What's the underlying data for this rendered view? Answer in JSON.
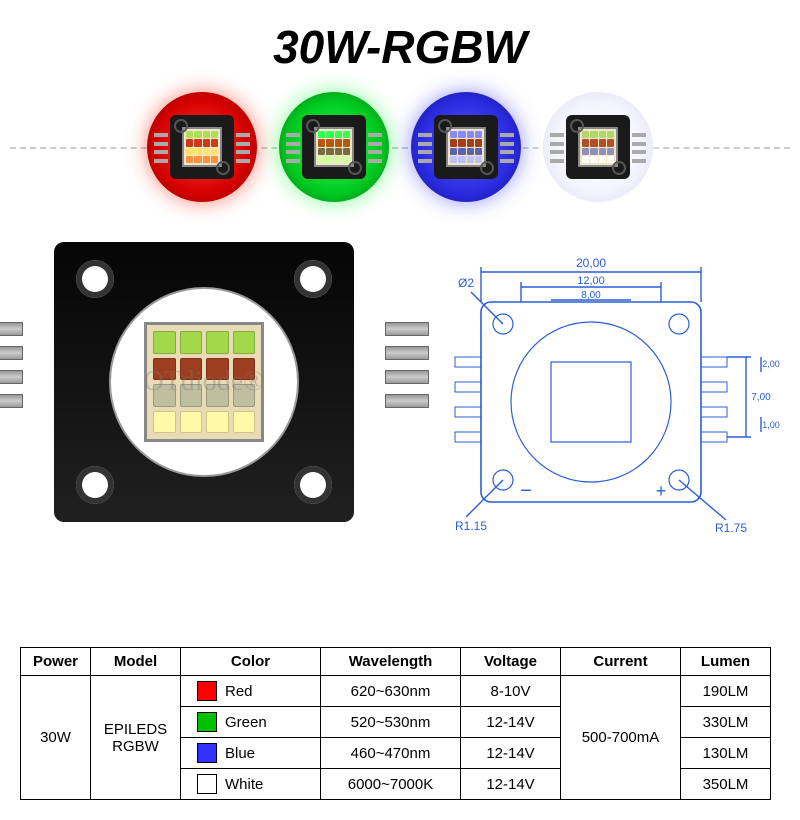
{
  "title": {
    "text": "30W-RGBW",
    "fontsize": 46,
    "color": "#000000"
  },
  "watermark": "OTdiode®",
  "swatches": [
    {
      "name": "red-swatch",
      "bg": "radial-gradient(circle,#ff3b2a 0%,#d40000 60%,#8a0000 100%)",
      "inner_glow": "#ff1a00",
      "grid_rows": [
        [
          "#aee05a",
          "#aee05a",
          "#aee05a",
          "#aee05a"
        ],
        [
          "#cc3a1a",
          "#cc3a1a",
          "#cc3a1a",
          "#cc3a1a"
        ],
        [
          "#ffe36a",
          "#ffe36a",
          "#ffe36a",
          "#ffe36a"
        ],
        [
          "#ff9040",
          "#ff9040",
          "#ff9040",
          "#ff9040"
        ]
      ]
    },
    {
      "name": "green-swatch",
      "bg": "radial-gradient(circle,#2aff4a 0%,#00c820 60%,#006a12 100%)",
      "inner_glow": "#18ff3a",
      "grid_rows": [
        [
          "#34ff55",
          "#34ff55",
          "#34ff55",
          "#34ff55"
        ],
        [
          "#b35a10",
          "#b35a10",
          "#b35a10",
          "#b35a10"
        ],
        [
          "#7a6a40",
          "#7a6a40",
          "#7a6a40",
          "#7a6a40"
        ],
        [
          "#d0ffa0",
          "#d0ffa0",
          "#d0ffa0",
          "#d0ffa0"
        ]
      ]
    },
    {
      "name": "blue-swatch",
      "bg": "radial-gradient(circle,#5a5aff 0%,#2a2ae0 60%,#101080 100%)",
      "inner_glow": "#3838ff",
      "grid_rows": [
        [
          "#8a8aff",
          "#8a8aff",
          "#8a8aff",
          "#8a8aff"
        ],
        [
          "#a04020",
          "#a04020",
          "#a04020",
          "#a04020"
        ],
        [
          "#6060b0",
          "#6060b0",
          "#6060b0",
          "#6060b0"
        ],
        [
          "#c0c0ff",
          "#c0c0ff",
          "#c0c0ff",
          "#c0c0ff"
        ]
      ]
    },
    {
      "name": "white-swatch",
      "bg": "radial-gradient(circle,#ffffff 0%,#f5f5ff 55%,#dcdcf0 100%)",
      "inner_glow": "#ffffff",
      "grid_rows": [
        [
          "#b0d868",
          "#b0d868",
          "#b0d868",
          "#b0d868"
        ],
        [
          "#b0502a",
          "#b0502a",
          "#b0502a",
          "#b0502a"
        ],
        [
          "#9090b8",
          "#9090b8",
          "#9090b8",
          "#9090b8"
        ],
        [
          "#ffffff",
          "#ffffff",
          "#ffffff",
          "#ffffff"
        ]
      ]
    }
  ],
  "big_chip_rows": [
    {
      "color": "#a3d84a"
    },
    {
      "color": "#9d3e20"
    },
    {
      "color": "#bfbfa0"
    },
    {
      "color": "#fff9a8"
    }
  ],
  "tech_drawing": {
    "stroke": "#2a5fd4",
    "dims": {
      "w_outer": "20,00",
      "w_inner": "12,00",
      "w_core": "8,00",
      "h_lead": "2,00",
      "h_gap": "1,00",
      "h_side": "7,00",
      "r_small": "R1.15",
      "r_big": "R1.75",
      "hole_d": "Ø2"
    }
  },
  "spec_table": {
    "headers": [
      "Power",
      "Model",
      "Color",
      "Wavelength",
      "Voltage",
      "Current",
      "Lumen"
    ],
    "power": "30W",
    "model": "EPILEDS\nRGBW",
    "current": "500-700mA",
    "rows": [
      {
        "swatch": "#ff0000",
        "color": "Red",
        "wavelength": "620~630nm",
        "voltage": "8-10V",
        "lumen": "190LM"
      },
      {
        "swatch": "#00c000",
        "color": "Green",
        "wavelength": "520~530nm",
        "voltage": "12-14V",
        "lumen": "330LM"
      },
      {
        "swatch": "#3030ff",
        "color": "Blue",
        "wavelength": "460~470nm",
        "voltage": "12-14V",
        "lumen": "130LM"
      },
      {
        "swatch": "#ffffff",
        "color": "White",
        "wavelength": "6000~7000K",
        "voltage": "12-14V",
        "lumen": "350LM"
      }
    ],
    "col_widths": [
      "70px",
      "90px",
      "140px",
      "140px",
      "100px",
      "120px",
      "90px"
    ]
  }
}
